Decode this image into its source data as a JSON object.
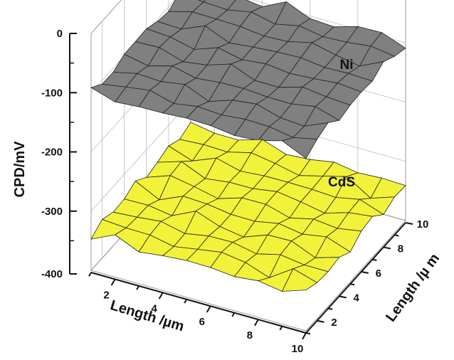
{
  "chart_data": {
    "type": "surface3d",
    "zlabel": "CPD/mV",
    "xlabel": "Length /µm",
    "ylabel": "Length /µ m",
    "zlim": [
      -400,
      0
    ],
    "xlim": [
      1,
      10
    ],
    "ylim": [
      1,
      10
    ],
    "z_ticks": [
      "0",
      "-100",
      "-200",
      "-300",
      "-400"
    ],
    "x_ticks": [
      "2",
      "4",
      "6",
      "8",
      "10"
    ],
    "y_ticks": [
      "2",
      "4",
      "6",
      "8",
      "10"
    ],
    "series": [
      {
        "name": "Ni",
        "color": "#808080",
        "mean_cpd_mV": -100
      },
      {
        "name": "CdS",
        "color": "#f2f23a",
        "mean_cpd_mV": -340
      }
    ]
  }
}
